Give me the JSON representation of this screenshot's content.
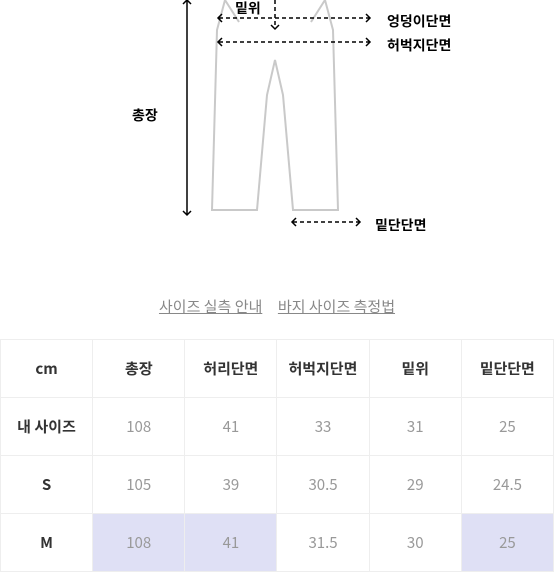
{
  "diagram": {
    "labels": {
      "rise": "밑위",
      "hip": "엉덩이단면",
      "thigh": "허벅지단면",
      "length": "총장",
      "hem": "밑단단면"
    },
    "outline_color": "#c9c9c9",
    "arrow_color": "#000000"
  },
  "links": {
    "guide": "사이즈 실측 안내",
    "method": "바지 사이즈 측정법"
  },
  "table": {
    "unit": "cm",
    "columns": [
      "총장",
      "허리단면",
      "허벅지단면",
      "밑위",
      "밑단단면"
    ],
    "rows": [
      {
        "label": "내 사이즈",
        "values": [
          "108",
          "41",
          "33",
          "31",
          "25"
        ],
        "highlight": []
      },
      {
        "label": "S",
        "values": [
          "105",
          "39",
          "30.5",
          "29",
          "24.5"
        ],
        "highlight": []
      },
      {
        "label": "M",
        "values": [
          "108",
          "41",
          "31.5",
          "30",
          "25"
        ],
        "highlight": [
          0,
          1,
          4
        ]
      }
    ],
    "border_color": "#eeeeee",
    "highlight_color": "#dfe0f5",
    "value_color": "#999999"
  }
}
